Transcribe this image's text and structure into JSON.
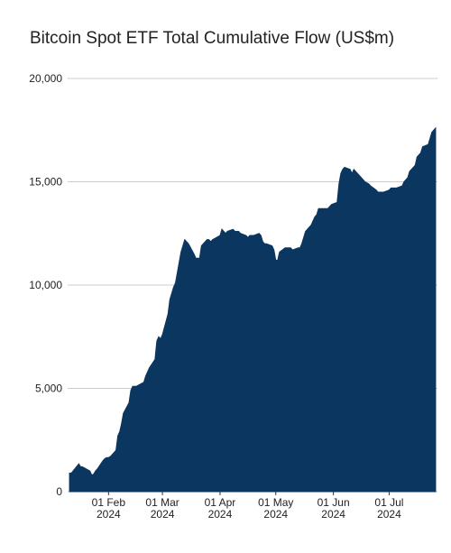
{
  "chart_data": {
    "type": "area",
    "title": "Bitcoin Spot ETF Total Cumulative Flow (US$m)",
    "color": "#0b3660",
    "grid": true,
    "ylim": [
      0,
      20000
    ],
    "yticks": [
      0,
      {
        "value": 5000,
        "label": "5,000"
      },
      {
        "value": 10000,
        "label": "10,000"
      },
      {
        "value": 15000,
        "label": "15,000"
      },
      {
        "value": 20000,
        "label": "20,000"
      }
    ],
    "xlim": [
      "2024-01-10",
      "2024-07-27"
    ],
    "xticks": [
      {
        "value": "2024-02-01",
        "label": "01 Feb 2024"
      },
      {
        "value": "2024-03-01",
        "label": "01 Mar 2024"
      },
      {
        "value": "2024-04-01",
        "label": "01 Apr 2024"
      },
      {
        "value": "2024-05-01",
        "label": "01 May 2024"
      },
      {
        "value": "2024-06-01",
        "label": "01 Jun 2024"
      },
      {
        "value": "2024-07-01",
        "label": "01 Jul 2024"
      }
    ],
    "x": [
      "2024-01-11",
      "2024-01-12",
      "2024-01-16",
      "2024-01-17",
      "2024-01-18",
      "2024-01-19",
      "2024-01-22",
      "2024-01-23",
      "2024-01-24",
      "2024-01-25",
      "2024-01-26",
      "2024-01-29",
      "2024-01-30",
      "2024-01-31",
      "2024-02-01",
      "2024-02-02",
      "2024-02-05",
      "2024-02-06",
      "2024-02-07",
      "2024-02-08",
      "2024-02-09",
      "2024-02-12",
      "2024-02-13",
      "2024-02-14",
      "2024-02-15",
      "2024-02-16",
      "2024-02-20",
      "2024-02-21",
      "2024-02-22",
      "2024-02-23",
      "2024-02-26",
      "2024-02-27",
      "2024-02-28",
      "2024-02-29",
      "2024-03-01",
      "2024-03-04",
      "2024-03-05",
      "2024-03-06",
      "2024-03-07",
      "2024-03-08",
      "2024-03-11",
      "2024-03-12",
      "2024-03-13",
      "2024-03-14",
      "2024-03-15",
      "2024-03-18",
      "2024-03-19",
      "2024-03-20",
      "2024-03-21",
      "2024-03-22",
      "2024-03-25",
      "2024-03-26",
      "2024-03-27",
      "2024-03-28",
      "2024-04-01",
      "2024-04-02",
      "2024-04-03",
      "2024-04-04",
      "2024-04-05",
      "2024-04-08",
      "2024-04-09",
      "2024-04-10",
      "2024-04-11",
      "2024-04-12",
      "2024-04-15",
      "2024-04-16",
      "2024-04-17",
      "2024-04-18",
      "2024-04-19",
      "2024-04-22",
      "2024-04-23",
      "2024-04-24",
      "2024-04-25",
      "2024-04-26",
      "2024-04-29",
      "2024-04-30",
      "2024-05-01",
      "2024-05-02",
      "2024-05-03",
      "2024-05-06",
      "2024-05-07",
      "2024-05-08",
      "2024-05-09",
      "2024-05-10",
      "2024-05-13",
      "2024-05-14",
      "2024-05-15",
      "2024-05-16",
      "2024-05-17",
      "2024-05-20",
      "2024-05-21",
      "2024-05-22",
      "2024-05-23",
      "2024-05-24",
      "2024-05-28",
      "2024-05-29",
      "2024-05-30",
      "2024-05-31",
      "2024-06-03",
      "2024-06-04",
      "2024-06-05",
      "2024-06-06",
      "2024-06-07",
      "2024-06-10",
      "2024-06-11",
      "2024-06-12",
      "2024-06-13",
      "2024-06-14",
      "2024-06-17",
      "2024-06-18",
      "2024-06-20",
      "2024-06-21",
      "2024-06-24",
      "2024-06-25",
      "2024-06-26",
      "2024-06-27",
      "2024-06-28",
      "2024-07-01",
      "2024-07-02",
      "2024-07-03",
      "2024-07-05",
      "2024-07-08",
      "2024-07-09",
      "2024-07-10",
      "2024-07-11",
      "2024-07-12",
      "2024-07-15",
      "2024-07-16",
      "2024-07-17",
      "2024-07-18",
      "2024-07-19",
      "2024-07-22",
      "2024-07-23",
      "2024-07-24",
      "2024-07-25",
      "2024-07-26"
    ],
    "values": [
      900,
      900,
      1350,
      1200,
      1200,
      1150,
      1000,
      800,
      850,
      1000,
      1100,
      1500,
      1600,
      1650,
      1650,
      1700,
      2000,
      2700,
      2900,
      3300,
      3800,
      4300,
      4900,
      5100,
      5100,
      5100,
      5300,
      5600,
      5800,
      6000,
      6400,
      7300,
      7500,
      7400,
      7600,
      8600,
      9300,
      9600,
      9900,
      10100,
      11600,
      11900,
      12200,
      12100,
      12000,
      11500,
      11300,
      11300,
      11300,
      11900,
      12200,
      12200,
      12100,
      12200,
      12400,
      12700,
      12600,
      12500,
      12600,
      12700,
      12600,
      12600,
      12600,
      12500,
      12400,
      12300,
      12400,
      12400,
      12400,
      12500,
      12400,
      12100,
      12000,
      12000,
      11900,
      11700,
      11200,
      11200,
      11600,
      11800,
      11800,
      11800,
      11800,
      11700,
      11800,
      11800,
      12000,
      12300,
      12600,
      12900,
      13100,
      13300,
      13400,
      13700,
      13700,
      13700,
      13800,
      13900,
      14000,
      14900,
      15400,
      15600,
      15700,
      15600,
      15400,
      15600,
      15500,
      15400,
      15100,
      15000,
      14900,
      14800,
      14600,
      14500,
      14500,
      14500,
      14500,
      14600,
      14700,
      14700,
      14700,
      14800,
      15000,
      15100,
      15200,
      15500,
      15800,
      16200,
      16300,
      16400,
      16700,
      16800,
      17100,
      17400,
      17500,
      17600
    ]
  }
}
